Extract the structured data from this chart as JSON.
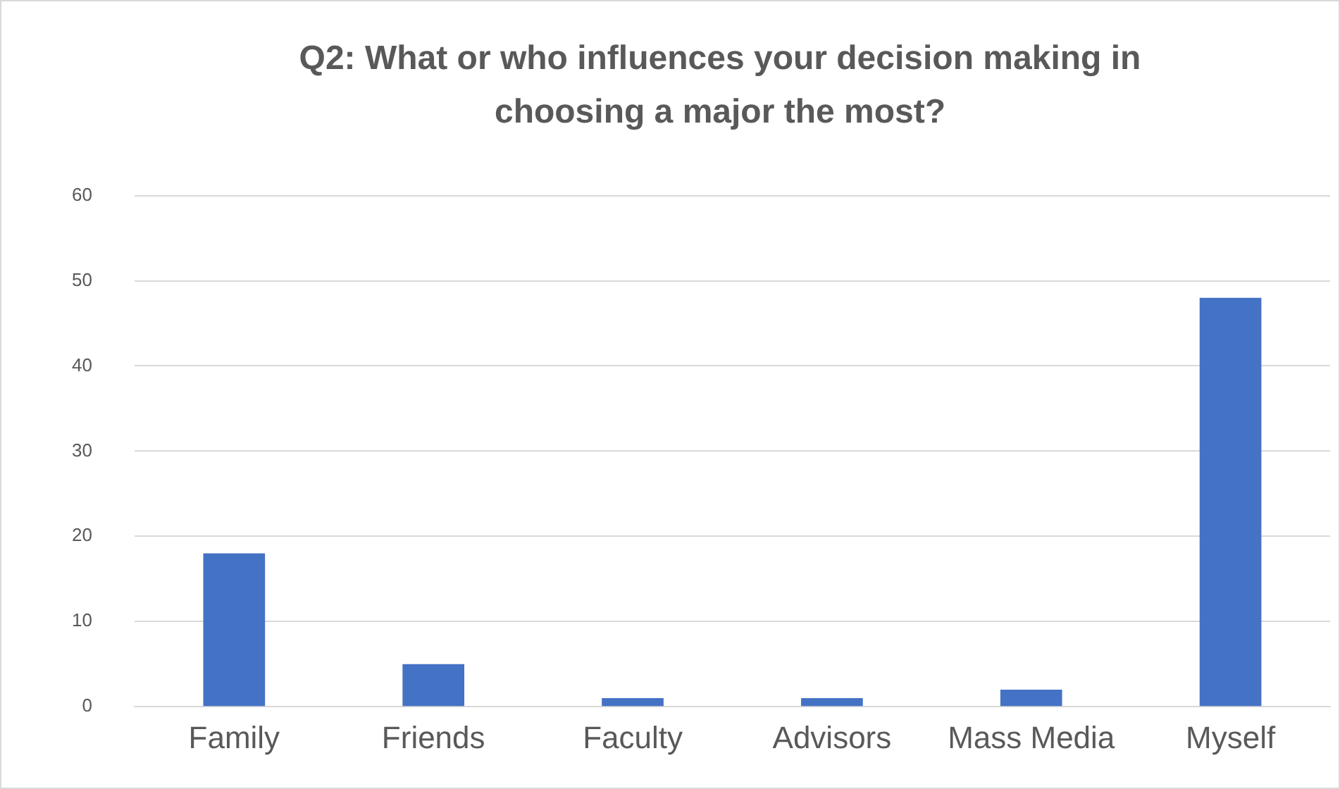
{
  "chart_data": {
    "type": "bar",
    "title": "Q2: What or who influences your decision making in choosing a major the most?",
    "categories": [
      "Family",
      "Friends",
      "Faculty",
      "Advisors",
      "Mass Media",
      "Myself"
    ],
    "values": [
      18,
      5,
      1,
      1,
      2,
      48
    ],
    "color": "#4472c4",
    "ylim": [
      0,
      60
    ],
    "yticks": [
      0,
      10,
      20,
      30,
      40,
      50,
      60
    ],
    "grid": "y",
    "legend": false
  }
}
